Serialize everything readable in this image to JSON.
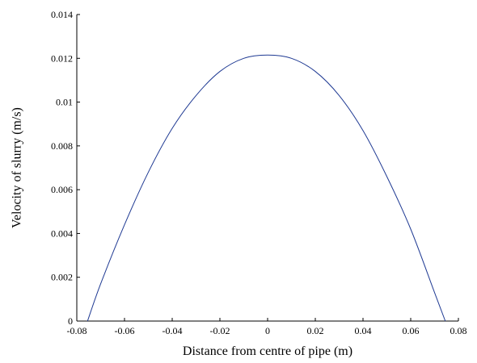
{
  "chart_data": {
    "type": "line",
    "title": "",
    "xlabel": "Distance from centre of pipe (m)",
    "ylabel": "Velocity of slurry (m/s)",
    "xlim": [
      -0.08,
      0.08
    ],
    "ylim": [
      0,
      0.014
    ],
    "grid": false,
    "x_ticks": [
      -0.08,
      -0.06,
      -0.04,
      -0.02,
      0,
      0.02,
      0.04,
      0.06,
      0.08
    ],
    "x_tick_labels": [
      "-0.08",
      "-0.06",
      "-0.04",
      "-0.02",
      "0",
      "0.02",
      "0.04",
      "0.06",
      "0.08"
    ],
    "y_ticks": [
      0,
      0.002,
      0.004,
      0.006,
      0.008,
      0.01,
      0.012,
      0.014
    ],
    "y_tick_labels": [
      "0",
      "0.002",
      "0.004",
      "0.006",
      "0.008",
      "0.01",
      "0.012",
      "0.014"
    ],
    "series": [
      {
        "color": "#1f3a93",
        "x": [
          -0.0755,
          -0.07,
          -0.06,
          -0.05,
          -0.04,
          -0.03,
          -0.02,
          -0.01,
          0,
          0.01,
          0.02,
          0.03,
          0.04,
          0.05,
          0.06,
          0.07,
          0.0745
        ],
        "y": [
          0,
          0.0017,
          0.0044,
          0.0068,
          0.0088,
          0.0103,
          0.0114,
          0.012,
          0.01215,
          0.012,
          0.0114,
          0.0103,
          0.0087,
          0.0066,
          0.0042,
          0.0013,
          0
        ]
      }
    ]
  }
}
